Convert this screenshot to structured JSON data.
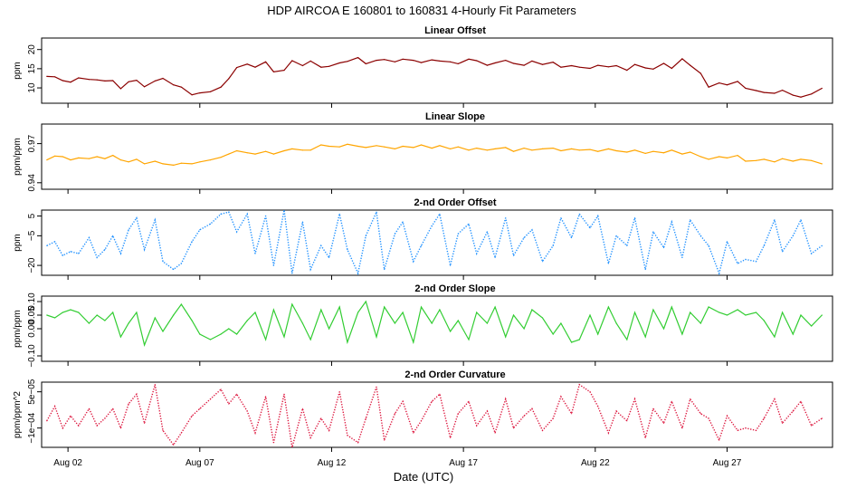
{
  "figure_title": "HDP   AIRCOA E   160801 to 160831   4-Hourly Fit Parameters",
  "xlabel": "Date (UTC)",
  "x_tick_labels": [
    "Aug 02",
    "Aug 07",
    "Aug 12",
    "Aug 17",
    "Aug 22",
    "Aug 27"
  ],
  "chart_data": [
    {
      "type": "line",
      "title": "Linear Offset",
      "ylabel": "ppm",
      "color": "#8b0000",
      "style": "solid",
      "ylim": [
        6.0,
        23.0
      ],
      "yticks": [
        10,
        15,
        20
      ],
      "ytick_labels": [
        "10",
        "15",
        "20"
      ],
      "x_day_range": [
        1.0,
        31.0
      ],
      "x_ticks_day": [
        2,
        7,
        12,
        17,
        22,
        27
      ],
      "series": [
        {
          "name": "Linear Offset",
          "x_day": [
            1.2,
            1.5,
            1.8,
            2.1,
            2.4,
            2.8,
            3.1,
            3.4,
            3.7,
            4.0,
            4.3,
            4.6,
            4.9,
            5.3,
            5.6,
            6.0,
            6.3,
            6.7,
            7.0,
            7.4,
            7.8,
            8.1,
            8.4,
            8.8,
            9.1,
            9.5,
            9.8,
            10.2,
            10.5,
            10.9,
            11.2,
            11.6,
            11.9,
            12.3,
            12.6,
            13.0,
            13.3,
            13.7,
            14.0,
            14.4,
            14.7,
            15.1,
            15.4,
            15.8,
            16.1,
            16.5,
            16.8,
            17.2,
            17.5,
            17.9,
            18.2,
            18.6,
            18.9,
            19.3,
            19.6,
            20.0,
            20.4,
            20.7,
            21.1,
            21.4,
            21.8,
            22.1,
            22.5,
            22.8,
            23.2,
            23.5,
            23.9,
            24.2,
            24.6,
            24.9,
            25.3,
            25.6,
            26.0,
            26.3,
            26.7,
            27.0,
            27.4,
            27.7,
            28.1,
            28.4,
            28.8,
            29.1,
            29.5,
            29.8,
            30.2,
            30.6
          ],
          "values": [
            13.0,
            12.9,
            11.9,
            11.5,
            12.6,
            12.2,
            12.1,
            11.8,
            11.9,
            9.8,
            11.6,
            12.0,
            10.3,
            11.8,
            12.5,
            10.8,
            10.2,
            8.2,
            8.7,
            9.0,
            10.2,
            12.4,
            15.3,
            16.2,
            15.4,
            16.8,
            14.2,
            14.6,
            17.1,
            15.8,
            17.0,
            15.4,
            15.6,
            16.5,
            16.9,
            17.9,
            16.3,
            17.2,
            17.4,
            16.8,
            17.5,
            17.2,
            16.6,
            17.3,
            17.0,
            16.8,
            16.3,
            17.5,
            17.1,
            15.9,
            16.5,
            17.2,
            16.4,
            15.9,
            17.0,
            16.1,
            16.7,
            15.4,
            15.8,
            15.4,
            15.1,
            15.9,
            15.5,
            15.8,
            14.6,
            16.1,
            15.2,
            14.9,
            16.4,
            15.1,
            17.6,
            15.9,
            13.8,
            10.2,
            11.3,
            10.8,
            11.7,
            9.9,
            9.3,
            8.8,
            8.6,
            9.4,
            8.1,
            7.6,
            8.4,
            9.9
          ]
        }
      ]
    },
    {
      "type": "line",
      "title": "Linear Slope",
      "ylabel": "ppm/ppm",
      "color": "#ffa500",
      "style": "solid",
      "ylim": [
        0.935,
        0.985
      ],
      "yticks": [
        0.94,
        0.97
      ],
      "ytick_labels": [
        "0.94",
        "0.97"
      ],
      "x_day_range": [
        1.0,
        31.0
      ],
      "x_ticks_day": [
        2,
        7,
        12,
        17,
        22,
        27
      ],
      "series": [
        {
          "name": "Linear Slope",
          "x_day": [
            1.2,
            1.5,
            1.8,
            2.1,
            2.4,
            2.8,
            3.1,
            3.4,
            3.7,
            4.0,
            4.3,
            4.6,
            4.9,
            5.3,
            5.6,
            6.0,
            6.3,
            6.7,
            7.0,
            7.4,
            7.8,
            8.1,
            8.4,
            8.8,
            9.1,
            9.5,
            9.8,
            10.2,
            10.5,
            10.9,
            11.2,
            11.6,
            11.9,
            12.3,
            12.6,
            13.0,
            13.3,
            13.7,
            14.0,
            14.4,
            14.7,
            15.1,
            15.4,
            15.8,
            16.1,
            16.5,
            16.8,
            17.2,
            17.5,
            17.9,
            18.2,
            18.6,
            18.9,
            19.3,
            19.6,
            20.0,
            20.4,
            20.7,
            21.1,
            21.4,
            21.8,
            22.1,
            22.5,
            22.8,
            23.2,
            23.5,
            23.9,
            24.2,
            24.6,
            24.9,
            25.3,
            25.6,
            26.0,
            26.3,
            26.7,
            27.0,
            27.4,
            27.7,
            28.1,
            28.4,
            28.8,
            29.1,
            29.5,
            29.8,
            30.2,
            30.6
          ],
          "values": [
            0.9575,
            0.9605,
            0.96,
            0.9575,
            0.959,
            0.9585,
            0.96,
            0.9585,
            0.961,
            0.9575,
            0.956,
            0.958,
            0.9545,
            0.9565,
            0.9545,
            0.9535,
            0.955,
            0.9545,
            0.956,
            0.9575,
            0.9595,
            0.962,
            0.9645,
            0.963,
            0.962,
            0.964,
            0.962,
            0.9645,
            0.966,
            0.965,
            0.965,
            0.969,
            0.968,
            0.9675,
            0.9695,
            0.968,
            0.967,
            0.9685,
            0.9675,
            0.966,
            0.968,
            0.967,
            0.969,
            0.9665,
            0.9685,
            0.966,
            0.9675,
            0.965,
            0.9665,
            0.965,
            0.966,
            0.967,
            0.964,
            0.9665,
            0.965,
            0.966,
            0.9665,
            0.9645,
            0.966,
            0.965,
            0.9655,
            0.964,
            0.966,
            0.9645,
            0.9635,
            0.965,
            0.9625,
            0.964,
            0.963,
            0.965,
            0.962,
            0.9635,
            0.96,
            0.958,
            0.96,
            0.959,
            0.961,
            0.9565,
            0.957,
            0.958,
            0.956,
            0.9585,
            0.9565,
            0.958,
            0.957,
            0.9545
          ]
        }
      ]
    },
    {
      "type": "line",
      "title": "2-nd Order Offset",
      "ylabel": "ppm",
      "color": "#1e90ff",
      "style": "dotted",
      "ylim": [
        -25.0,
        8.0
      ],
      "yticks": [
        5,
        -5,
        -20
      ],
      "ytick_labels": [
        "5",
        "−5",
        "−20"
      ],
      "x_day_range": [
        1.0,
        31.0
      ],
      "x_ticks_day": [
        2,
        7,
        12,
        17,
        22,
        27
      ],
      "series": [
        {
          "name": "2-nd Order Offset",
          "x_day": [
            1.2,
            1.5,
            1.8,
            2.1,
            2.4,
            2.8,
            3.1,
            3.4,
            3.7,
            4.0,
            4.3,
            4.6,
            4.9,
            5.3,
            5.6,
            6.0,
            6.3,
            6.7,
            7.0,
            7.4,
            7.8,
            8.1,
            8.4,
            8.8,
            9.1,
            9.5,
            9.8,
            10.2,
            10.5,
            10.9,
            11.2,
            11.6,
            11.9,
            12.3,
            12.6,
            13.0,
            13.3,
            13.7,
            14.0,
            14.4,
            14.7,
            15.1,
            15.4,
            15.8,
            16.1,
            16.5,
            16.8,
            17.2,
            17.5,
            17.9,
            18.2,
            18.6,
            18.9,
            19.3,
            19.6,
            20.0,
            20.4,
            20.7,
            21.1,
            21.4,
            21.8,
            22.1,
            22.5,
            22.8,
            23.2,
            23.5,
            23.9,
            24.2,
            24.6,
            24.9,
            25.3,
            25.6,
            26.0,
            26.3,
            26.7,
            27.0,
            27.4,
            27.7,
            28.1,
            28.4,
            28.8,
            29.1,
            29.5,
            29.8,
            30.2,
            30.6
          ],
          "values": [
            -10,
            -8,
            -15,
            -13,
            -14,
            -6,
            -16,
            -12,
            -5,
            -14,
            -2,
            4,
            -12,
            3,
            -18,
            -22,
            -19,
            -8,
            -2,
            1,
            6,
            7,
            -3,
            6,
            -14,
            5,
            -20,
            8,
            -24,
            2,
            -22,
            -10,
            -16,
            6,
            -12,
            -24,
            -5,
            7,
            -22,
            -4,
            2,
            -18,
            -10,
            0,
            6,
            -20,
            -4,
            1,
            -14,
            -3,
            -16,
            4,
            -15,
            -6,
            -2,
            -18,
            -10,
            4,
            -6,
            6,
            -1,
            5,
            -19,
            -5,
            -10,
            4,
            -22,
            -3,
            -11,
            2,
            -16,
            3,
            -5,
            -10,
            -24,
            -8,
            -19,
            -17,
            -18,
            -10,
            3,
            -13,
            -5,
            3,
            -14,
            -10
          ]
        }
      ]
    },
    {
      "type": "line",
      "title": "2-nd Order Slope",
      "ylabel": "ppm/ppm",
      "color": "#32cd32",
      "style": "solid",
      "ylim": [
        -0.12,
        0.12
      ],
      "yticks": [
        0.1,
        0.05,
        0.0,
        -0.1
      ],
      "ytick_labels": [
        "0.10",
        "0.05",
        "0.00",
        "−0.10"
      ],
      "x_day_range": [
        1.0,
        31.0
      ],
      "x_ticks_day": [
        2,
        7,
        12,
        17,
        22,
        27
      ],
      "series": [
        {
          "name": "2-nd Order Slope",
          "x_day": [
            1.2,
            1.5,
            1.8,
            2.1,
            2.4,
            2.8,
            3.1,
            3.4,
            3.7,
            4.0,
            4.3,
            4.6,
            4.9,
            5.3,
            5.6,
            6.0,
            6.3,
            6.7,
            7.0,
            7.4,
            7.8,
            8.1,
            8.4,
            8.8,
            9.1,
            9.5,
            9.8,
            10.2,
            10.5,
            10.9,
            11.2,
            11.6,
            11.9,
            12.3,
            12.6,
            13.0,
            13.3,
            13.7,
            14.0,
            14.4,
            14.7,
            15.1,
            15.4,
            15.8,
            16.1,
            16.5,
            16.8,
            17.2,
            17.5,
            17.9,
            18.2,
            18.6,
            18.9,
            19.3,
            19.6,
            20.0,
            20.4,
            20.7,
            21.1,
            21.4,
            21.8,
            22.1,
            22.5,
            22.8,
            23.2,
            23.5,
            23.9,
            24.2,
            24.6,
            24.9,
            25.3,
            25.6,
            26.0,
            26.3,
            26.7,
            27.0,
            27.4,
            27.7,
            28.1,
            28.4,
            28.8,
            29.1,
            29.5,
            29.8,
            30.2,
            30.6
          ],
          "values": [
            0.05,
            0.04,
            0.06,
            0.07,
            0.06,
            0.02,
            0.05,
            0.03,
            0.06,
            -0.03,
            0.02,
            0.06,
            -0.06,
            0.04,
            -0.01,
            0.05,
            0.09,
            0.03,
            -0.02,
            -0.04,
            -0.02,
            0.0,
            -0.02,
            0.03,
            0.06,
            -0.04,
            0.07,
            -0.03,
            0.09,
            0.02,
            -0.04,
            0.07,
            0.0,
            0.08,
            -0.05,
            0.06,
            0.1,
            -0.03,
            0.08,
            0.02,
            0.06,
            -0.05,
            0.08,
            0.02,
            0.07,
            -0.01,
            0.03,
            -0.04,
            0.06,
            0.02,
            0.08,
            -0.03,
            0.05,
            0.0,
            0.07,
            0.04,
            -0.02,
            0.02,
            -0.05,
            -0.04,
            0.05,
            -0.02,
            0.08,
            0.02,
            -0.04,
            0.06,
            -0.03,
            0.07,
            0.0,
            0.08,
            -0.02,
            0.06,
            0.02,
            0.08,
            0.06,
            0.05,
            0.07,
            0.05,
            0.06,
            0.03,
            -0.03,
            0.06,
            -0.02,
            0.05,
            0.01,
            0.05
          ]
        }
      ]
    },
    {
      "type": "line",
      "title": "2-nd Order Curvature",
      "ylabel": "ppm/ppm^2",
      "color": "#dc143c",
      "style": "dotted",
      "ylim": [
        -0.00018,
        9e-05
      ],
      "yticks": [
        5e-05,
        -0.0001
      ],
      "ytick_labels": [
        "5e−05",
        "−1e−04"
      ],
      "x_day_range": [
        1.0,
        31.0
      ],
      "x_ticks_day": [
        2,
        7,
        12,
        17,
        22,
        27
      ],
      "series": [
        {
          "name": "2-nd Order Curvature",
          "x_day": [
            1.2,
            1.5,
            1.8,
            2.1,
            2.4,
            2.8,
            3.1,
            3.4,
            3.7,
            4.0,
            4.3,
            4.6,
            4.9,
            5.3,
            5.6,
            6.0,
            6.3,
            6.7,
            7.0,
            7.4,
            7.8,
            8.1,
            8.4,
            8.8,
            9.1,
            9.5,
            9.8,
            10.2,
            10.5,
            10.9,
            11.2,
            11.6,
            11.9,
            12.3,
            12.6,
            13.0,
            13.3,
            13.7,
            14.0,
            14.4,
            14.7,
            15.1,
            15.4,
            15.8,
            16.1,
            16.5,
            16.8,
            17.2,
            17.5,
            17.9,
            18.2,
            18.6,
            18.9,
            19.3,
            19.6,
            20.0,
            20.4,
            20.7,
            21.1,
            21.4,
            21.8,
            22.1,
            22.5,
            22.8,
            23.2,
            23.5,
            23.9,
            24.2,
            24.6,
            24.9,
            25.3,
            25.6,
            26.0,
            26.3,
            26.7,
            27.0,
            27.4,
            27.7,
            28.1,
            28.4,
            28.8,
            29.1,
            29.5,
            29.8,
            30.2,
            30.6
          ],
          "values": [
            -7e-05,
            -1e-05,
            -0.0001,
            -5e-05,
            -9e-05,
            -2e-05,
            -9e-05,
            -6e-05,
            -2e-05,
            -0.0001,
            0.0,
            4e-05,
            -8e-05,
            8e-05,
            -0.00011,
            -0.00017,
            -0.00012,
            -5e-05,
            -2e-05,
            2e-05,
            6e-05,
            0.0,
            4e-05,
            -3e-05,
            -0.00012,
            3e-05,
            -0.00016,
            4e-05,
            -0.00018,
            -2e-05,
            -0.00014,
            -6e-05,
            -0.00011,
            5e-05,
            -0.00013,
            -0.00016,
            -6e-05,
            7e-05,
            -0.00015,
            -4e-05,
            1e-05,
            -0.00012,
            -7e-05,
            1e-05,
            4e-05,
            -0.00014,
            -4e-05,
            1e-05,
            -9e-05,
            -3e-05,
            -0.00012,
            2e-05,
            -0.0001,
            -5e-05,
            -2e-05,
            -0.00011,
            -6e-05,
            3e-05,
            -4e-05,
            8e-05,
            5e-05,
            -1e-05,
            -0.00012,
            -3e-05,
            -7e-05,
            2e-05,
            -0.00014,
            -2e-05,
            -8e-05,
            1e-05,
            -0.0001,
            2e-05,
            -4e-05,
            -6e-05,
            -0.00015,
            -5e-05,
            -0.00011,
            -0.0001,
            -0.00011,
            -6e-05,
            2e-05,
            -8e-05,
            -3e-05,
            1e-05,
            -9e-05,
            -6e-05
          ]
        }
      ]
    }
  ]
}
